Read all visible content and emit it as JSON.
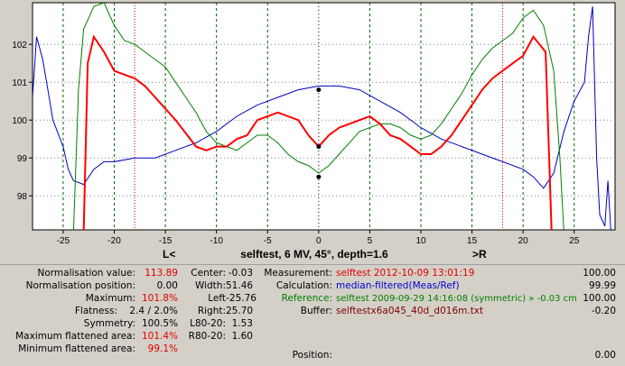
{
  "colors": {
    "meas": "#ff0000",
    "calc": "#0000c0",
    "ref": "#008000",
    "grid_v": "#006000",
    "marker": "#c00000"
  },
  "chart_data": {
    "type": "line",
    "title": "selftest, 6 MV, 45°, depth=1.6",
    "left_marker_label": "L<",
    "right_marker_label": ">R",
    "xlim": [
      -28,
      29
    ],
    "ylim": [
      97.1,
      103.1
    ],
    "x_ticks": [
      -25,
      -20,
      -15,
      -10,
      -5,
      0,
      5,
      10,
      15,
      20,
      25
    ],
    "y_ticks": [
      98,
      99,
      100,
      101,
      102
    ],
    "red_markers": [
      -18,
      18
    ],
    "series": [
      {
        "color": "#ff0000",
        "values": [
          [
            -23,
            97
          ],
          [
            -22.6,
            101.5
          ],
          [
            -22,
            102.2
          ],
          [
            -21,
            101.8
          ],
          [
            -20,
            101.3
          ],
          [
            -18,
            101.1
          ],
          [
            -17,
            100.9
          ],
          [
            -16,
            100.6
          ],
          [
            -15,
            100.3
          ],
          [
            -14,
            100
          ],
          [
            -12,
            99.3
          ],
          [
            -11,
            99.2
          ],
          [
            -10,
            99.3
          ],
          [
            -9,
            99.3
          ],
          [
            -8,
            99.5
          ],
          [
            -7,
            99.6
          ],
          [
            -6,
            100
          ],
          [
            -5,
            100.1
          ],
          [
            -4,
            100.2
          ],
          [
            -3,
            100.1
          ],
          [
            -2,
            100
          ],
          [
            -1,
            99.6
          ],
          [
            0,
            99.3
          ],
          [
            1,
            99.6
          ],
          [
            2,
            99.8
          ],
          [
            3,
            99.9
          ],
          [
            4,
            100
          ],
          [
            5,
            100.1
          ],
          [
            6,
            99.9
          ],
          [
            7,
            99.6
          ],
          [
            8,
            99.5
          ],
          [
            9,
            99.3
          ],
          [
            10,
            99.1
          ],
          [
            11,
            99.1
          ],
          [
            12,
            99.3
          ],
          [
            13,
            99.6
          ],
          [
            14,
            100
          ],
          [
            15,
            100.4
          ],
          [
            16,
            100.8
          ],
          [
            17,
            101.1
          ],
          [
            18,
            101.3
          ],
          [
            19,
            101.5
          ],
          [
            20,
            101.7
          ],
          [
            21,
            102.2
          ],
          [
            22.2,
            101.8
          ],
          [
            22.8,
            97
          ]
        ]
      },
      {
        "color": "#008000",
        "values": [
          [
            -24,
            97
          ],
          [
            -23.5,
            100.8
          ],
          [
            -23,
            102.4
          ],
          [
            -22,
            103
          ],
          [
            -21,
            103.1
          ],
          [
            -20,
            102.5
          ],
          [
            -19,
            102.1
          ],
          [
            -18,
            102
          ],
          [
            -17,
            101.8
          ],
          [
            -16,
            101.6
          ],
          [
            -15,
            101.4
          ],
          [
            -14,
            101
          ],
          [
            -13,
            100.6
          ],
          [
            -12,
            100.2
          ],
          [
            -11,
            99.7
          ],
          [
            -10,
            99.4
          ],
          [
            -9,
            99.3
          ],
          [
            -8,
            99.2
          ],
          [
            -7,
            99.4
          ],
          [
            -6,
            99.6
          ],
          [
            -5,
            99.6
          ],
          [
            -4,
            99.4
          ],
          [
            -3,
            99.1
          ],
          [
            -2,
            98.9
          ],
          [
            -1,
            98.8
          ],
          [
            0,
            98.6
          ],
          [
            1,
            98.8
          ],
          [
            2,
            99.1
          ],
          [
            3,
            99.4
          ],
          [
            4,
            99.7
          ],
          [
            5,
            99.8
          ],
          [
            6,
            99.9
          ],
          [
            7,
            99.9
          ],
          [
            8,
            99.8
          ],
          [
            9,
            99.6
          ],
          [
            10,
            99.5
          ],
          [
            11,
            99.6
          ],
          [
            12,
            99.9
          ],
          [
            13,
            100.3
          ],
          [
            14,
            100.7
          ],
          [
            15,
            101.2
          ],
          [
            16,
            101.6
          ],
          [
            17,
            101.9
          ],
          [
            18,
            102.1
          ],
          [
            19,
            102.3
          ],
          [
            20,
            102.7
          ],
          [
            21,
            102.9
          ],
          [
            22,
            102.5
          ],
          [
            23,
            101.3
          ],
          [
            23.6,
            99
          ],
          [
            24,
            97
          ]
        ]
      },
      {
        "color": "#0000c0",
        "values": [
          [
            -28,
            100.6
          ],
          [
            -27.6,
            102.2
          ],
          [
            -27,
            101.6
          ],
          [
            -26.5,
            100.8
          ],
          [
            -26,
            100
          ],
          [
            -25,
            99.3
          ],
          [
            -24.5,
            98.7
          ],
          [
            -24,
            98.4
          ],
          [
            -23,
            98.3
          ],
          [
            -22,
            98.7
          ],
          [
            -21,
            98.9
          ],
          [
            -20,
            98.9
          ],
          [
            -18,
            99
          ],
          [
            -16,
            99
          ],
          [
            -14,
            99.2
          ],
          [
            -12,
            99.4
          ],
          [
            -10,
            99.7
          ],
          [
            -8,
            100.1
          ],
          [
            -6,
            100.4
          ],
          [
            -4,
            100.6
          ],
          [
            -2,
            100.8
          ],
          [
            0,
            100.9
          ],
          [
            2,
            100.9
          ],
          [
            4,
            100.8
          ],
          [
            6,
            100.5
          ],
          [
            8,
            100.2
          ],
          [
            10,
            99.8
          ],
          [
            12,
            99.5
          ],
          [
            14,
            99.3
          ],
          [
            16,
            99.1
          ],
          [
            18,
            98.9
          ],
          [
            20,
            98.7
          ],
          [
            21,
            98.5
          ],
          [
            22,
            98.2
          ],
          [
            23,
            98.6
          ],
          [
            24,
            99.7
          ],
          [
            25,
            100.5
          ],
          [
            26,
            101
          ],
          [
            26.4,
            102.2
          ],
          [
            26.8,
            103
          ],
          [
            27.2,
            99
          ],
          [
            27.5,
            97.5
          ],
          [
            28,
            97.2
          ],
          [
            28.3,
            98.4
          ],
          [
            28.6,
            97
          ]
        ]
      }
    ],
    "points": [
      [
        0,
        100.8
      ],
      [
        0,
        99.3
      ],
      [
        0,
        98.5
      ]
    ]
  },
  "info": {
    "normalisation_value_label": "Normalisation value:",
    "normalisation_value": "113.89",
    "normalisation_position_label": "Normalisation position:",
    "normalisation_position": "0.00",
    "maximum_label": "Maximum:",
    "maximum": "101.8%",
    "flatness_label": "Flatness:",
    "flatness": "2.4 / 2.0%",
    "symmetry_label": "Symmetry:",
    "symmetry": "100.5%",
    "max_flat_area_label": "Maximum flattened area:",
    "max_flat_area": "101.4%",
    "min_flat_area_label": "Minimum flattened area:",
    "min_flat_area": "99.1%",
    "center_label": "Center:",
    "center": "-0.03",
    "width_label": "Width:",
    "width": "51.46",
    "left_label": "Left",
    "left": "-25.76",
    "right_label": "Right:",
    "right": "25.70",
    "l80_label": "L80-20:",
    "l80": "1.53",
    "r80_label": "R80-20:",
    "r80": "1.60",
    "measurement_label": "Measurement:",
    "measurement": "selftest 2012-10-09 13:01:19",
    "measurement_num": "100.00",
    "calculation_label": "Calculation:",
    "calculation": "median-filtered(Meas/Ref)",
    "calculation_num": "99.99",
    "reference_label": "Reference:",
    "reference": "selftest 2009-09-29 14:16:08 (symmetric) » -0.03 cm",
    "reference_num": "100.00",
    "buffer_label": "Buffer:",
    "buffer": "selftestx6a045_40d_d016m.txt",
    "buffer_num": "-0.20",
    "position_label": "Position:",
    "position_num": "0.00"
  }
}
